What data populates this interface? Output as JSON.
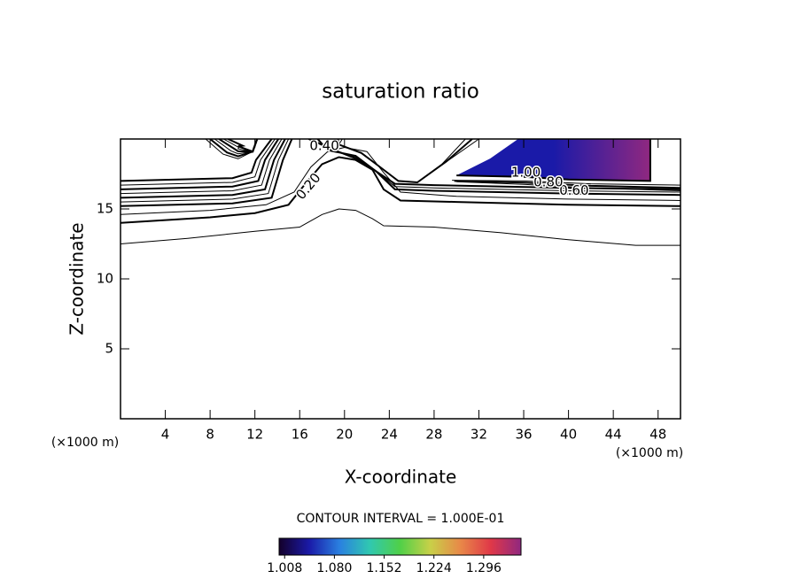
{
  "chart_data": {
    "type": "contour",
    "title": "saturation ratio",
    "xlabel": "X-coordinate",
    "ylabel": "Z-coordinate",
    "xunit_left": "(×1000 m)",
    "xunit_right": "(×1000 m)",
    "annotation": "CONTOUR INTERVAL = 1.000E-01",
    "xlim": [
      0,
      50
    ],
    "xticks": [
      4,
      8,
      12,
      16,
      20,
      24,
      28,
      32,
      36,
      40,
      44,
      48
    ],
    "ylim": [
      0,
      20
    ],
    "yticks": [
      5,
      10,
      15
    ],
    "levels": [
      0.1,
      0.2,
      0.3,
      0.4,
      0.5,
      0.6,
      0.7,
      0.8,
      0.9,
      1.0
    ],
    "value_labels": [
      null,
      "0.20",
      null,
      "0.40",
      null,
      "0.60",
      null,
      "0.80",
      null,
      "1.00"
    ],
    "clim": [
      1.0,
      1.35
    ],
    "cticks": [
      {
        "value": 1.008,
        "label": "1.008"
      },
      {
        "value": 1.08,
        "label": "1.080"
      },
      1.152,
      1.224,
      1.296
    ],
    "colormap": [
      "#14002a",
      "#1a1aa8",
      "#2a80e0",
      "#30c8b0",
      "#50d048",
      "#c8d048",
      "#e88848",
      "#e03848",
      "#902880"
    ],
    "line_color": "#000000"
  }
}
